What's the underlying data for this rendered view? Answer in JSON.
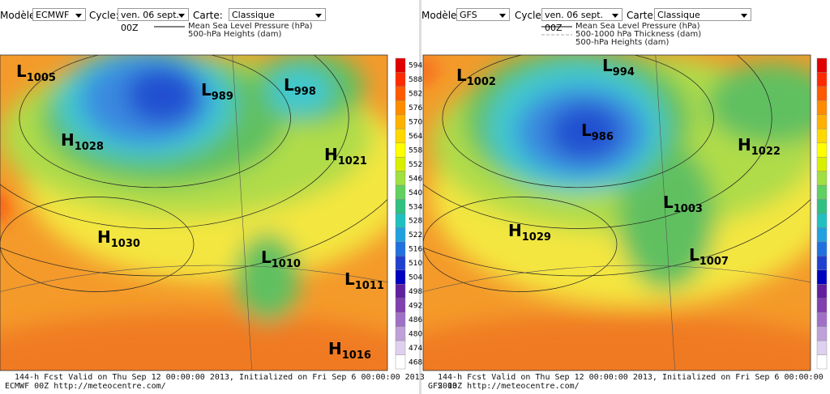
{
  "colorbar_labels": [
    594,
    588,
    582,
    576,
    570,
    564,
    558,
    552,
    546,
    540,
    534,
    528,
    522,
    516,
    510,
    504,
    498,
    492,
    486,
    480,
    474,
    468
  ],
  "panels": [
    {
      "controls": {
        "model_label": "Modèle:",
        "model": "ECMWF",
        "cycle_label": "Cycle:",
        "cycle": "ven. 06 sept. 00Z",
        "map_label": "Carte:",
        "map": "Classique"
      },
      "legend": [
        "Mean Sea Level Pressure (hPa)",
        "500-hPa Heights (dam)"
      ],
      "centers": [
        {
          "letter": "L",
          "value": 1005
        },
        {
          "letter": "H",
          "value": 1028
        },
        {
          "letter": "L",
          "value": 989
        },
        {
          "letter": "L",
          "value": 998
        },
        {
          "letter": "H",
          "value": 1021
        },
        {
          "letter": "H",
          "value": 1030
        },
        {
          "letter": "L",
          "value": 1010
        },
        {
          "letter": "L",
          "value": 1011
        },
        {
          "letter": "H",
          "value": 1016
        }
      ],
      "footer": [
        "144-h Fcst Valid on Thu Sep 12 00:00:00 2013, Initialized on Fri Sep  6 00:00:00 2013",
        "ECMWF 00Z http://meteocentre.com/"
      ]
    },
    {
      "controls": {
        "model_label": "Modèle:",
        "model": "GFS",
        "cycle_label": "Cycle:",
        "cycle": "ven. 06 sept. 00Z",
        "map_label": "Carte:",
        "map": "Classique"
      },
      "legend": [
        "Mean Sea Level Pressure (hPa)",
        "500-1000 hPa Thickness (dam)",
        "500-hPa Heights (dam)"
      ],
      "centers": [
        {
          "letter": "L",
          "value": 1002
        },
        {
          "letter": "L",
          "value": 994
        },
        {
          "letter": "L",
          "value": 986
        },
        {
          "letter": "H",
          "value": 1022
        },
        {
          "letter": "H",
          "value": 1029
        },
        {
          "letter": "L",
          "value": 1003
        },
        {
          "letter": "L",
          "value": 1007
        }
      ],
      "footer": [
        "144-h Fcst Valid on Thu Sep 12 00:00:00 2013, Initialized on Fri Sep  6 00:00:00 2013",
        "GFS 00Z http://meteocentre.com/"
      ]
    }
  ]
}
